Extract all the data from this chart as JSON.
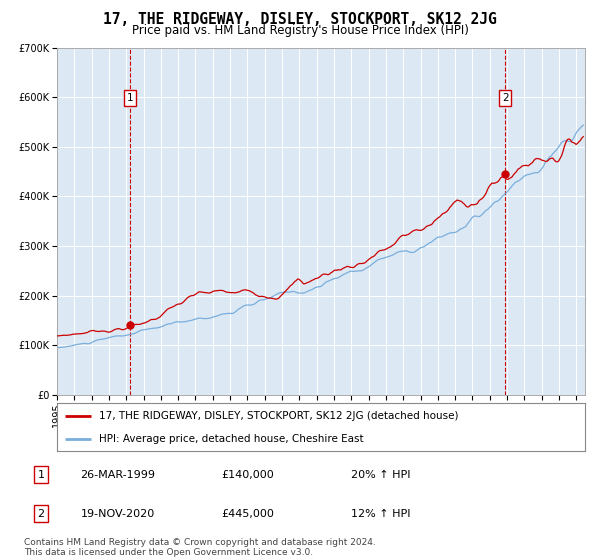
{
  "title": "17, THE RIDGEWAY, DISLEY, STOCKPORT, SK12 2JG",
  "subtitle": "Price paid vs. HM Land Registry's House Price Index (HPI)",
  "ylim": [
    0,
    700000
  ],
  "xlim_start": 1995.0,
  "xlim_end": 2025.5,
  "yticks": [
    0,
    100000,
    200000,
    300000,
    400000,
    500000,
    600000,
    700000
  ],
  "ytick_labels": [
    "£0",
    "£100K",
    "£200K",
    "£300K",
    "£400K",
    "£500K",
    "£600K",
    "£700K"
  ],
  "background_color": "#ffffff",
  "plot_bg_color": "#dce9f5",
  "grid_color": "#ffffff",
  "sale1_date": 1999.23,
  "sale1_price": 140000,
  "sale2_date": 2020.89,
  "sale2_price": 445000,
  "red_line_color": "#cc0000",
  "blue_line_color": "#7aaedc",
  "marker_color": "#cc0000",
  "vline_color": "#cc0000",
  "legend_label_red": "17, THE RIDGEWAY, DISLEY, STOCKPORT, SK12 2JG (detached house)",
  "legend_label_blue": "HPI: Average price, detached house, Cheshire East",
  "annotation1_label": "1",
  "annotation2_label": "2",
  "table_row1": [
    "1",
    "26-MAR-1999",
    "£140,000",
    "20% ↑ HPI"
  ],
  "table_row2": [
    "2",
    "19-NOV-2020",
    "£445,000",
    "12% ↑ HPI"
  ],
  "footer": "Contains HM Land Registry data © Crown copyright and database right 2024.\nThis data is licensed under the Open Government Licence v3.0.",
  "title_fontsize": 10.5,
  "subtitle_fontsize": 8.5,
  "tick_fontsize": 7,
  "legend_fontsize": 7.5,
  "table_fontsize": 8,
  "footer_fontsize": 6.5
}
